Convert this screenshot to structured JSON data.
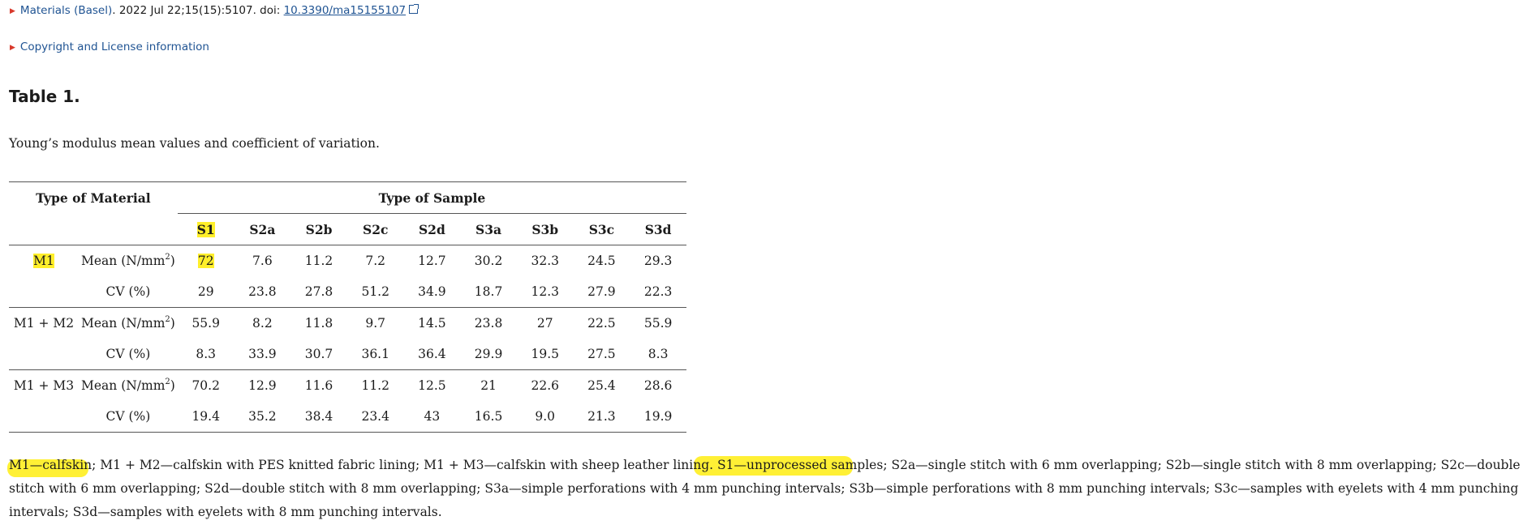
{
  "citation": {
    "journal": "Materials (Basel)",
    "details": ". 2022 Jul 22;15(15):5107. doi: ",
    "doi": "10.3390/ma15155107"
  },
  "license_link": "Copyright and License information",
  "table": {
    "title": "Table 1.",
    "caption": "Young’s modulus mean values and coefficient of variation.",
    "header_material": "Type of Material",
    "header_sample": "Type of Sample",
    "samples": [
      "S1",
      "S2a",
      "S2b",
      "S2c",
      "S2d",
      "S3a",
      "S3b",
      "S3c",
      "S3d"
    ],
    "mean_label": "Mean (N/mm",
    "mean_sup": "2",
    "mean_close": ")",
    "cv_label": "CV (%)",
    "groups": [
      {
        "material": "M1",
        "mean": [
          "72",
          "7.6",
          "11.2",
          "7.2",
          "12.7",
          "30.2",
          "32.3",
          "24.5",
          "29.3"
        ],
        "cv": [
          "29",
          "23.8",
          "27.8",
          "51.2",
          "34.9",
          "18.7",
          "12.3",
          "27.9",
          "22.3"
        ]
      },
      {
        "material": "M1 + M2",
        "mean": [
          "55.9",
          "8.2",
          "11.8",
          "9.7",
          "14.5",
          "23.8",
          "27",
          "22.5",
          "55.9"
        ],
        "cv": [
          "8.3",
          "33.9",
          "30.7",
          "36.1",
          "36.4",
          "29.9",
          "19.5",
          "27.5",
          "8.3"
        ]
      },
      {
        "material": "M1 + M3",
        "mean": [
          "70.2",
          "12.9",
          "11.6",
          "11.2",
          "12.5",
          "21",
          "22.6",
          "25.4",
          "28.6"
        ],
        "cv": [
          "19.4",
          "35.2",
          "38.4",
          "23.4",
          "43",
          "16.5",
          "9.0",
          "21.3",
          "19.9"
        ]
      }
    ]
  },
  "footnote": {
    "part1": "M1—calfskin",
    "part2": "; M1 + M2—calfskin with PES knitted fabric lining; M1 + M3—calfskin with sheep leather lining. ",
    "part3": "S1—unprocessed sample",
    "part4": "s; S2a—single stitch with 6 mm overlapping; S2b—single stitch with 8 mm overlapping; S2c—double stitch with 6 mm overlapping; S2d—double stitch with 8 mm overlapping; S3a—simple perforations with 4 mm punching intervals; S3b—simple perforations with 8 mm punching intervals; S3c—samples with eyelets with 4 mm punching intervals; S3d—samples with eyelets with 8 mm punching intervals."
  },
  "colors": {
    "link": "#205493",
    "triangle": "#d8392b",
    "highlight": "#ffef2a"
  }
}
